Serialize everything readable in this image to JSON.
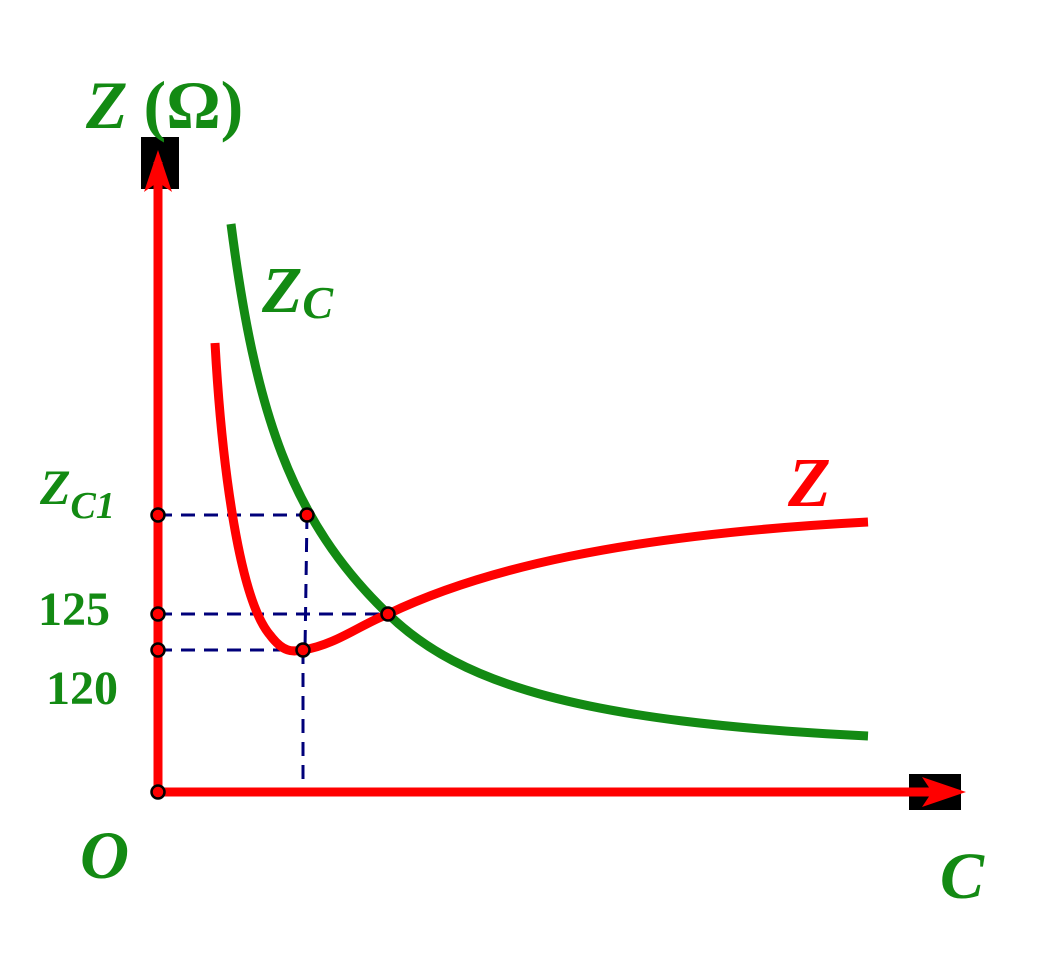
{
  "axes": {
    "y_label_main": "Z",
    "y_label_unit": "(Ω)",
    "x_label": "C",
    "origin_label": "O"
  },
  "curves": {
    "zc_label_main": "Z",
    "zc_label_sub": "C",
    "z_label": "Z"
  },
  "ticks": {
    "zc1_main": "Z",
    "zc1_sub": "C1",
    "t125": "125",
    "t120": "120"
  },
  "colors": {
    "axis": "#ff0000",
    "z_curve": "#ff0000",
    "zc_curve": "#138a13",
    "label": "#138a13",
    "guide": "#00007a",
    "arrow_box": "#000000"
  }
}
